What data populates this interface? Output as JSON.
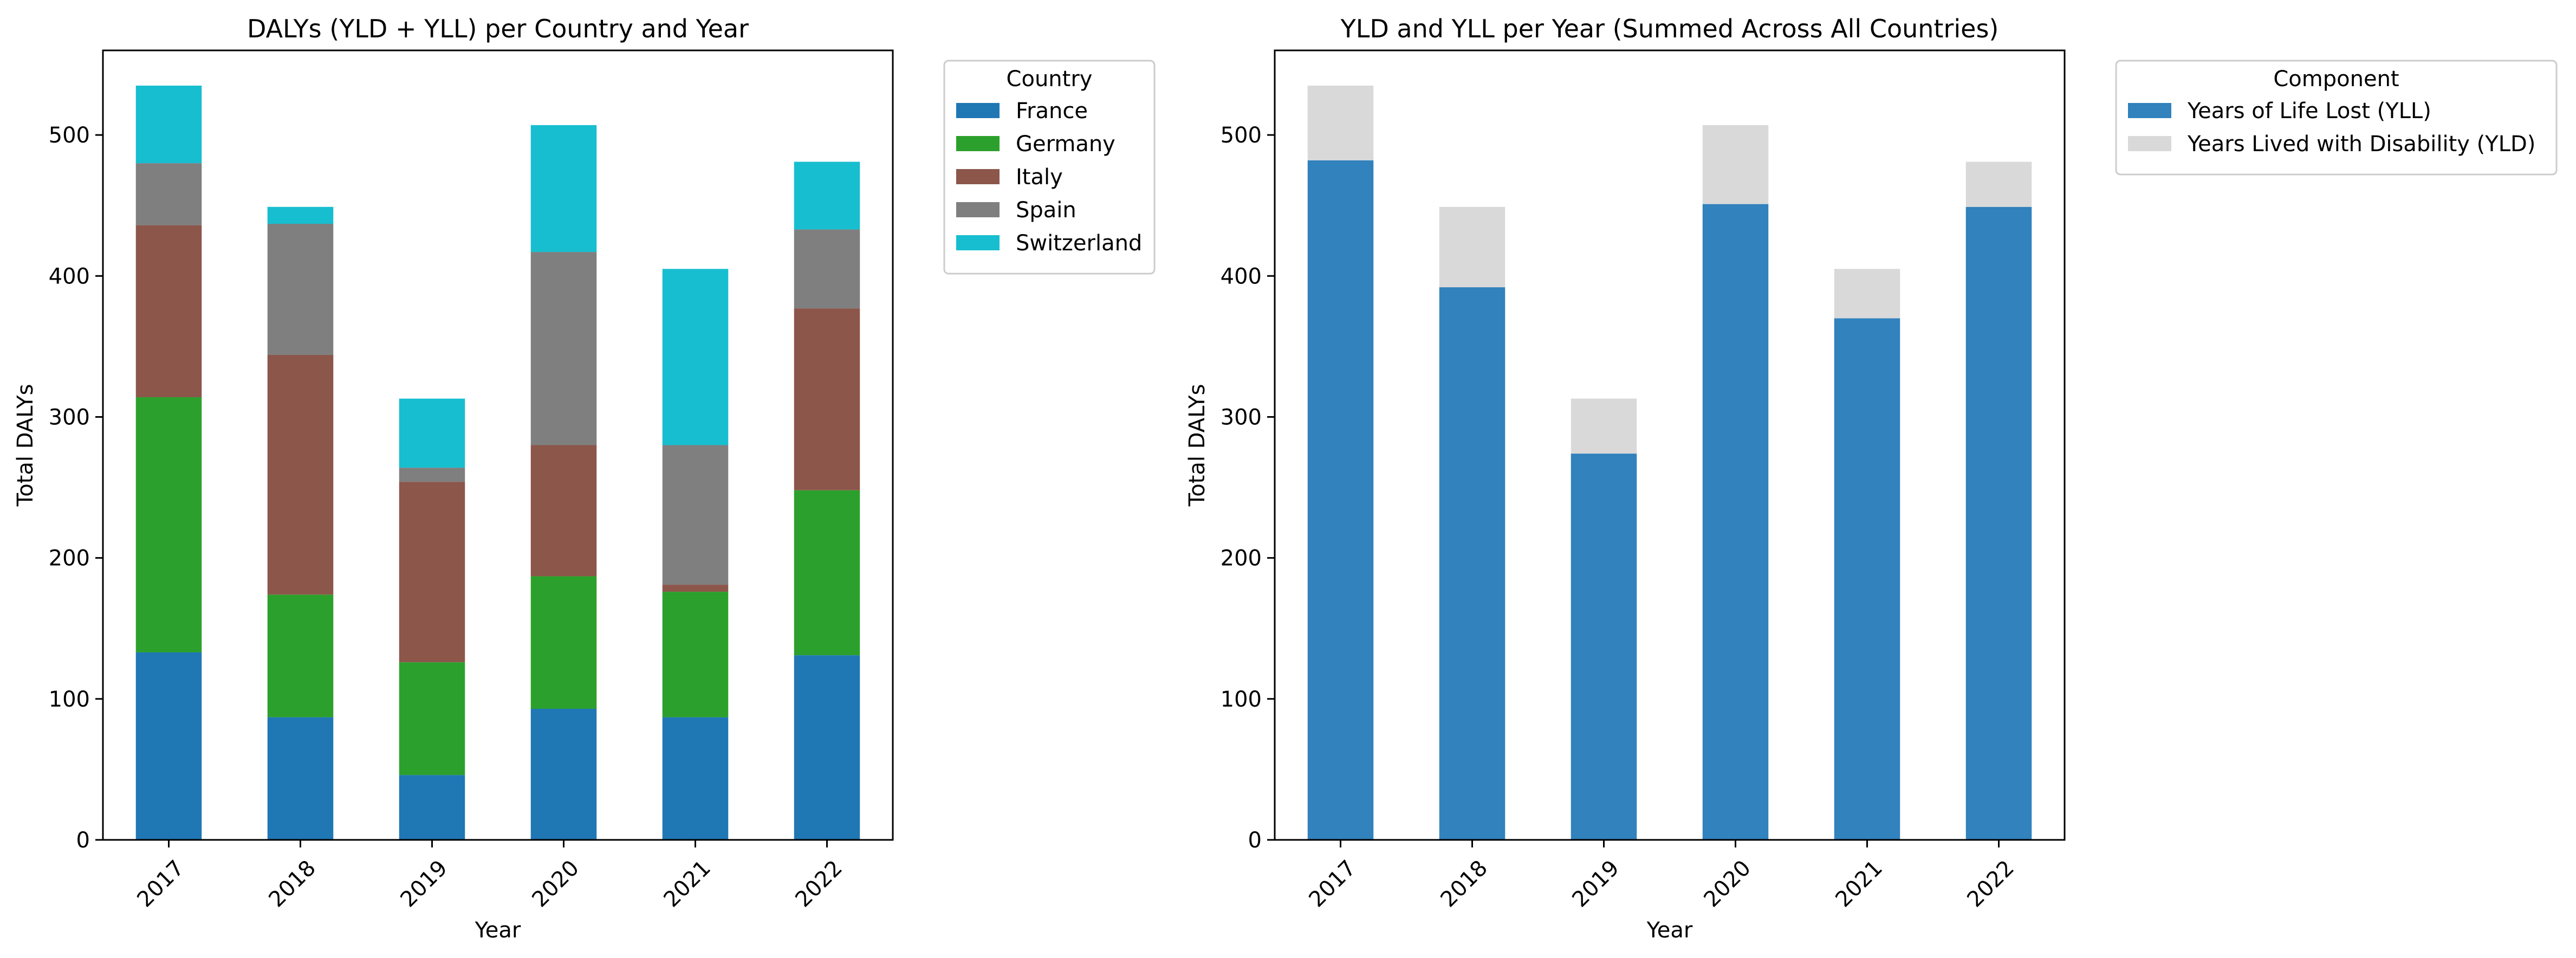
{
  "chart_data": [
    {
      "type": "bar",
      "stacked": true,
      "title": "DALYs (YLD + YLL) per Country and Year",
      "xlabel": "Year",
      "ylabel": "Total DALYs",
      "categories": [
        "2017",
        "2018",
        "2019",
        "2020",
        "2021",
        "2022"
      ],
      "ylim": [
        0,
        560
      ],
      "yticks": [
        0,
        100,
        200,
        300,
        400,
        500
      ],
      "grid": false,
      "legend": {
        "title": "Country",
        "placement": "outside upper right"
      },
      "series": [
        {
          "name": "France",
          "color": "#1f77b4",
          "values": [
            133,
            87,
            46,
            93,
            87,
            131
          ]
        },
        {
          "name": "Germany",
          "color": "#2ca02c",
          "values": [
            181,
            87,
            80,
            94,
            89,
            117
          ]
        },
        {
          "name": "Italy",
          "color": "#8c564b",
          "values": [
            122,
            170,
            128,
            93,
            5,
            129
          ]
        },
        {
          "name": "Spain",
          "color": "#7f7f7f",
          "values": [
            44,
            93,
            10,
            137,
            99,
            56
          ]
        },
        {
          "name": "Switzerland",
          "color": "#17becf",
          "values": [
            55,
            12,
            49,
            90,
            125,
            48
          ]
        }
      ]
    },
    {
      "type": "bar",
      "stacked": true,
      "title": "YLD and YLL per Year (Summed Across All Countries)",
      "xlabel": "Year",
      "ylabel": "Total DALYs",
      "categories": [
        "2017",
        "2018",
        "2019",
        "2020",
        "2021",
        "2022"
      ],
      "ylim": [
        0,
        560
      ],
      "yticks": [
        0,
        100,
        200,
        300,
        400,
        500
      ],
      "grid": false,
      "legend": {
        "title": "Component",
        "placement": "outside upper right"
      },
      "series": [
        {
          "name": "Years of Life Lost (YLL)",
          "color": "#3182bd",
          "values": [
            482,
            392,
            274,
            451,
            370,
            449
          ]
        },
        {
          "name": "Years Lived with Disability (YLD)",
          "color": "#d9d9d9",
          "values": [
            53,
            57,
            39,
            56,
            35,
            32
          ]
        }
      ]
    }
  ]
}
